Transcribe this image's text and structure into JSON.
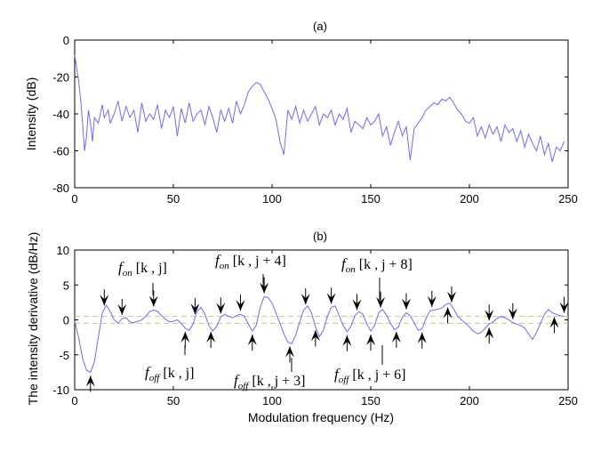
{
  "chart_data": [
    {
      "type": "line",
      "title": "(a)",
      "xlabel": "",
      "ylabel": "Intensity (dB)",
      "xlim": [
        0,
        250
      ],
      "ylim": [
        -80,
        0
      ],
      "xticks": [
        0,
        50,
        100,
        150,
        200,
        250
      ],
      "yticks": [
        0,
        -20,
        -40,
        -60,
        -80
      ],
      "grid": false,
      "line_color": "#6b6bff",
      "series": [
        {
          "x": [
            0,
            1,
            2,
            3,
            4,
            5,
            6,
            7,
            8,
            9,
            10,
            12,
            14,
            15,
            17,
            18,
            20,
            22,
            24,
            26,
            28,
            30,
            32,
            34,
            36,
            38,
            40,
            42,
            44,
            46,
            48,
            50,
            52,
            54,
            56,
            58,
            60,
            62,
            64,
            66,
            68,
            70,
            72,
            74,
            76,
            78,
            80,
            82,
            84,
            86,
            88,
            90,
            92,
            94,
            96,
            98,
            100,
            102,
            104,
            106,
            108,
            110,
            112,
            114,
            116,
            118,
            120,
            122,
            124,
            126,
            128,
            130,
            132,
            134,
            136,
            138,
            140,
            142,
            144,
            146,
            148,
            150,
            152,
            154,
            156,
            158,
            160,
            162,
            164,
            166,
            168,
            170,
            172,
            174,
            176,
            178,
            180,
            182,
            184,
            186,
            188,
            190,
            192,
            194,
            196,
            198,
            200,
            202,
            204,
            206,
            208,
            210,
            212,
            214,
            216,
            218,
            220,
            222,
            224,
            226,
            228,
            230,
            232,
            234,
            236,
            238,
            240,
            242,
            244,
            246,
            248
          ],
          "y": [
            -8,
            -15,
            -22,
            -32,
            -45,
            -60,
            -52,
            -38,
            -45,
            -55,
            -42,
            -45,
            -35,
            -42,
            -38,
            -45,
            -40,
            -33,
            -44,
            -36,
            -42,
            -38,
            -50,
            -34,
            -44,
            -40,
            -43,
            -35,
            -48,
            -38,
            -42,
            -36,
            -52,
            -37,
            -45,
            -34,
            -44,
            -40,
            -38,
            -46,
            -36,
            -42,
            -50,
            -38,
            -44,
            -37,
            -45,
            -33,
            -40,
            -35,
            -28,
            -25,
            -23,
            -24,
            -28,
            -32,
            -37,
            -43,
            -55,
            -62,
            -38,
            -43,
            -36,
            -45,
            -38,
            -44,
            -40,
            -36,
            -46,
            -40,
            -42,
            -38,
            -46,
            -40,
            -43,
            -37,
            -50,
            -44,
            -46,
            -48,
            -42,
            -46,
            -44,
            -40,
            -52,
            -47,
            -57,
            -50,
            -44,
            -52,
            -47,
            -65,
            -48,
            -45,
            -42,
            -38,
            -36,
            -34,
            -35,
            -32,
            -33,
            -31,
            -34,
            -38,
            -40,
            -44,
            -45,
            -42,
            -52,
            -47,
            -53,
            -46,
            -51,
            -47,
            -55,
            -46,
            -50,
            -48,
            -55,
            -49,
            -58,
            -51,
            -56,
            -60,
            -52,
            -62,
            -56,
            -66,
            -58,
            -60,
            -55
          ]
        }
      ]
    },
    {
      "type": "line",
      "title": "(b)",
      "xlabel": "Modulation frequency (Hz)",
      "ylabel": "The intensity derivative (dB/Hz)",
      "xlim": [
        0,
        250
      ],
      "ylim": [
        -10,
        10
      ],
      "xticks": [
        0,
        50,
        100,
        150,
        200,
        250
      ],
      "yticks": [
        10,
        5,
        0,
        -5,
        -10
      ],
      "grid": false,
      "line_color": "#6b6bff",
      "threshold_lines": [
        0.5,
        -0.5
      ],
      "threshold_color": "#c9c98a",
      "series": [
        {
          "x": [
            0,
            2,
            4,
            6,
            8,
            10,
            12,
            14,
            16,
            18,
            20,
            22,
            24,
            26,
            28,
            30,
            32,
            34,
            36,
            38,
            40,
            42,
            44,
            46,
            48,
            50,
            52,
            54,
            56,
            58,
            60,
            62,
            64,
            66,
            68,
            70,
            72,
            74,
            76,
            78,
            80,
            82,
            84,
            86,
            88,
            90,
            92,
            94,
            96,
            98,
            100,
            102,
            104,
            106,
            108,
            110,
            112,
            114,
            116,
            118,
            120,
            122,
            124,
            126,
            128,
            130,
            132,
            134,
            136,
            138,
            140,
            142,
            144,
            146,
            148,
            150,
            152,
            154,
            156,
            158,
            160,
            162,
            164,
            166,
            168,
            170,
            172,
            174,
            176,
            178,
            180,
            182,
            184,
            186,
            188,
            190,
            192,
            194,
            196,
            198,
            200,
            202,
            204,
            206,
            208,
            210,
            212,
            214,
            216,
            218,
            220,
            222,
            224,
            226,
            228,
            230,
            232,
            234,
            236,
            238,
            240,
            242,
            244,
            246,
            248
          ],
          "y": [
            -0.2,
            -2.5,
            -5.5,
            -7.2,
            -7.5,
            -6,
            -2.5,
            1,
            2.1,
            1.2,
            0,
            -0.5,
            0.2,
            0.3,
            -0.3,
            -0.4,
            -0.2,
            0,
            0.5,
            1.2,
            1.4,
            1.2,
            0.6,
            0.1,
            -0.3,
            -0.2,
            0,
            -0.5,
            -1.2,
            -1.5,
            -0.6,
            1.2,
            1.8,
            0.8,
            -0.8,
            -1.6,
            -0.9,
            0.4,
            0.8,
            0.5,
            0.3,
            0.6,
            0.8,
            0.5,
            -0.6,
            -1.6,
            -0.8,
            1.8,
            3.3,
            3.2,
            2.4,
            1,
            -0.5,
            -2,
            -3.2,
            -3.4,
            -2.2,
            -0.3,
            1.4,
            2,
            1,
            -1,
            -2.4,
            -1.5,
            0.5,
            1.8,
            2,
            0.6,
            -0.8,
            -1.7,
            -0.9,
            0.6,
            1.2,
            0.8,
            -0.6,
            -1.6,
            -0.8,
            1,
            1.5,
            0.7,
            -0.5,
            -1.4,
            -1,
            0.4,
            1,
            0.6,
            -0.4,
            -1.5,
            -1.3,
            0.2,
            1.3,
            1.4,
            1.5,
            1.7,
            2.2,
            2.4,
            1.6,
            0.5,
            0,
            -0.5,
            -1,
            -1.6,
            -2,
            -1.8,
            -1.2,
            -0.6,
            -0.3,
            0.2,
            0.5,
            0.3,
            0,
            -0.4,
            -0.6,
            -0.8,
            -1.2,
            -2,
            -2.8,
            -1.8,
            -0.5,
            0.8,
            1.5,
            1,
            0.8,
            0.6,
            0.5
          ]
        }
      ],
      "arrows_down_x": [
        15,
        24,
        40,
        61,
        74,
        84,
        96,
        117,
        130,
        143,
        155,
        168,
        181,
        191,
        210,
        222,
        248
      ],
      "arrows_up_x": [
        8,
        56,
        69,
        90,
        109,
        122,
        138,
        150,
        163,
        176,
        189,
        210,
        243
      ],
      "annotations": {
        "on_k_j": {
          "f": "f",
          "sub": "on",
          "bracket": "[k , j]"
        },
        "on_k_j4": {
          "f": "f",
          "sub": "on",
          "bracket": "[k , j + 4]"
        },
        "on_k_j8": {
          "f": "f",
          "sub": "on",
          "bracket": "[k , j + 8]"
        },
        "off_k_j": {
          "f": "f",
          "sub": "off",
          "bracket": "[k , j]"
        },
        "off_k_j3": {
          "f": "f",
          "sub": "off",
          "bracket": "[k , j + 3]"
        },
        "off_k_j6": {
          "f": "f",
          "sub": "off",
          "bracket": "[k , j + 6]"
        }
      }
    }
  ]
}
